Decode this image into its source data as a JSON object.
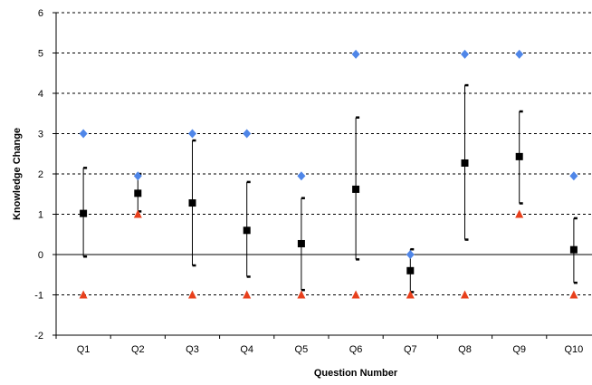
{
  "chart_data": {
    "type": "scatter",
    "title": "",
    "xlabel": "Question Number",
    "ylabel": "Knowledge Change",
    "categories": [
      "Q1",
      "Q2",
      "Q3",
      "Q4",
      "Q5",
      "Q6",
      "Q7",
      "Q8",
      "Q9",
      "Q10"
    ],
    "ylim": [
      -2,
      6
    ],
    "yticks": [
      -2,
      -1,
      0,
      1,
      2,
      3,
      4,
      5,
      6
    ],
    "grid": "horizontal dotted",
    "legend": "none",
    "series": [
      {
        "marker": "square",
        "color": "#000000",
        "values": [
          1.02,
          1.52,
          1.28,
          0.6,
          0.27,
          1.62,
          -0.4,
          2.27,
          2.43,
          0.12
        ],
        "error_low": [
          -0.05,
          1.07,
          -0.27,
          -0.55,
          -0.88,
          -0.12,
          -0.93,
          0.37,
          1.27,
          -0.7
        ],
        "error_high": [
          2.15,
          2.0,
          2.83,
          1.8,
          1.4,
          3.4,
          0.13,
          4.2,
          3.55,
          0.9
        ]
      },
      {
        "marker": "diamond",
        "color": "#4f86e8",
        "values": [
          3,
          1.95,
          3,
          3,
          1.95,
          4.97,
          0,
          4.97,
          4.97,
          1.95
        ]
      },
      {
        "marker": "triangle",
        "color": "#e8401c",
        "values": [
          -1,
          1,
          -1,
          -1,
          -1,
          -1,
          -1,
          -1,
          1,
          -1
        ]
      }
    ]
  }
}
